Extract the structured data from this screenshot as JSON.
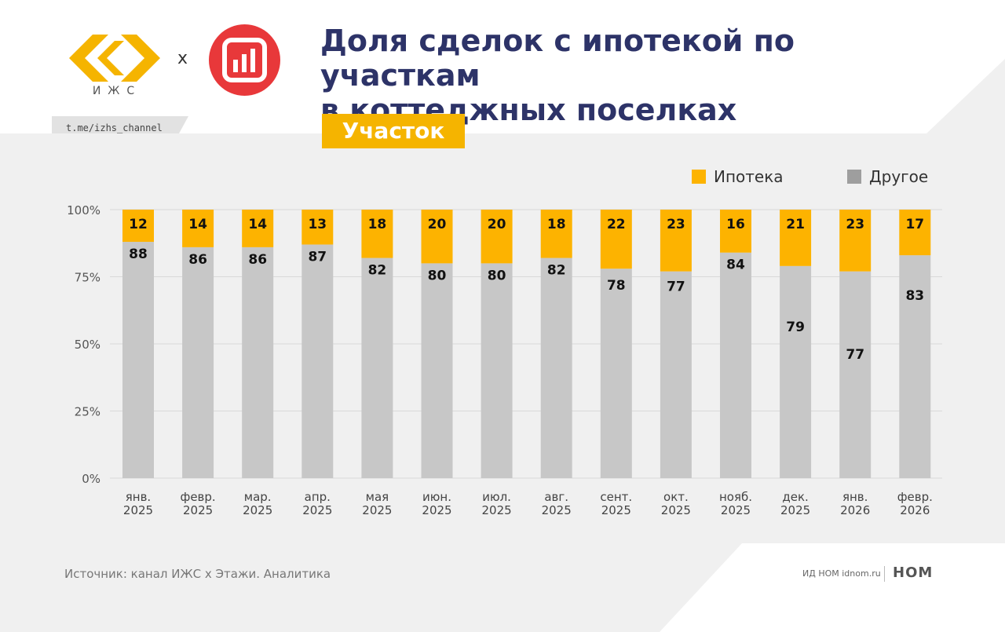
{
  "header": {
    "logo_text": "ИЖС",
    "cross": "x",
    "channel": "t.me/izhs_channel",
    "title_line1": "Доля сделок с ипотекой по участкам",
    "title_line2": "в коттеджных поселках",
    "tag": "Участок"
  },
  "footer": {
    "source": "Источник: канал ИЖС x Этажи. Аналитика",
    "publisher": "ИД НОМ idnom.ru",
    "publisher_logo": "НОМ"
  },
  "colors": {
    "mortgage": "#fdb300",
    "other": "#c7c7c7",
    "title": "#2d3368",
    "accent": "#f5b400",
    "red_logo": "#e8383a"
  },
  "chart_data": {
    "type": "bar",
    "stacked": true,
    "title": "Доля сделок с ипотекой по участкам в коттеджных поселках",
    "categories": [
      [
        "янв.",
        "2025"
      ],
      [
        "февр.",
        "2025"
      ],
      [
        "мар.",
        "2025"
      ],
      [
        "апр.",
        "2025"
      ],
      [
        "мая",
        "2025"
      ],
      [
        "июн.",
        "2025"
      ],
      [
        "июл.",
        "2025"
      ],
      [
        "авг.",
        "2025"
      ],
      [
        "сент.",
        "2025"
      ],
      [
        "окт.",
        "2025"
      ],
      [
        "нояб.",
        "2025"
      ],
      [
        "дек.",
        "2025"
      ],
      [
        "янв.",
        "2026"
      ],
      [
        "февр.",
        "2026"
      ]
    ],
    "series": [
      {
        "name": "Другое",
        "values": [
          88,
          86,
          86,
          87,
          82,
          80,
          80,
          82,
          78,
          77,
          84,
          79,
          77,
          83
        ]
      },
      {
        "name": "Ипотека",
        "values": [
          12,
          14,
          14,
          13,
          18,
          20,
          20,
          18,
          22,
          23,
          16,
          21,
          23,
          17
        ]
      }
    ],
    "y_ticks": [
      "0%",
      "25%",
      "50%",
      "75%",
      "100%"
    ],
    "ylim": [
      0,
      100
    ],
    "legend_position": "top-right",
    "legend": [
      "Ипотека",
      "Другое"
    ]
  }
}
